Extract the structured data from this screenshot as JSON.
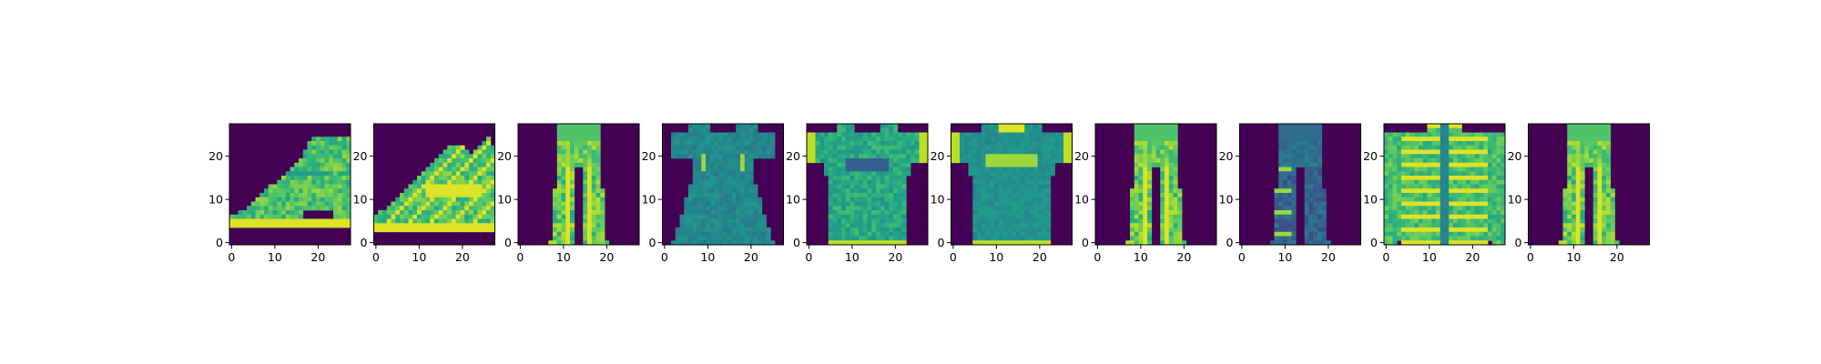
{
  "figure": {
    "background": "#ffffff"
  },
  "chart_data": {
    "type": "heatmap",
    "colormap": "viridis",
    "colormap_endpoints": [
      "#440154",
      "#fde725"
    ],
    "grid": false,
    "image_shape": [
      28,
      28
    ],
    "x_ticks": [
      0,
      10,
      20
    ],
    "y_ticks": [
      0,
      10,
      20
    ],
    "xlim": [
      -0.5,
      27.5
    ],
    "ylim": [
      27.5,
      -0.5
    ],
    "panels": [
      {
        "tick_labels": {
          "x": [
            "0",
            "10",
            "20"
          ],
          "y": [
            "0",
            "10",
            "20"
          ]
        },
        "depicts": "ankle-boot"
      },
      {
        "tick_labels": {
          "x": [
            "0",
            "10",
            "20"
          ],
          "y": [
            "0",
            "10",
            "20"
          ]
        },
        "depicts": "ankle-boot-strapped"
      },
      {
        "tick_labels": {
          "x": [
            "0",
            "10",
            "20"
          ],
          "y": [
            "0",
            "10",
            "20"
          ]
        },
        "depicts": "trouser"
      },
      {
        "tick_labels": {
          "x": [
            "0",
            "10",
            "20"
          ],
          "y": [
            "0",
            "10",
            "20"
          ]
        },
        "depicts": "dress"
      },
      {
        "tick_labels": {
          "x": [
            "0",
            "10",
            "20"
          ],
          "y": [
            "0",
            "10",
            "20"
          ]
        },
        "depicts": "t-shirt"
      },
      {
        "tick_labels": {
          "x": [
            "0",
            "10",
            "20"
          ],
          "y": [
            "0",
            "10",
            "20"
          ]
        },
        "depicts": "t-shirt"
      },
      {
        "tick_labels": {
          "x": [
            "0",
            "10",
            "20"
          ],
          "y": [
            "0",
            "10",
            "20"
          ]
        },
        "depicts": "trouser"
      },
      {
        "tick_labels": {
          "x": [
            "0",
            "10",
            "20"
          ],
          "y": [
            "0",
            "10",
            "20"
          ]
        },
        "depicts": "trouser-dark"
      },
      {
        "tick_labels": {
          "x": [
            "0",
            "10",
            "20"
          ],
          "y": [
            "0",
            "10",
            "20"
          ]
        },
        "depicts": "coat"
      },
      {
        "tick_labels": {
          "x": [
            "0",
            "10",
            "20"
          ],
          "y": [
            "0",
            "10",
            "20"
          ]
        },
        "depicts": "trouser"
      }
    ]
  }
}
